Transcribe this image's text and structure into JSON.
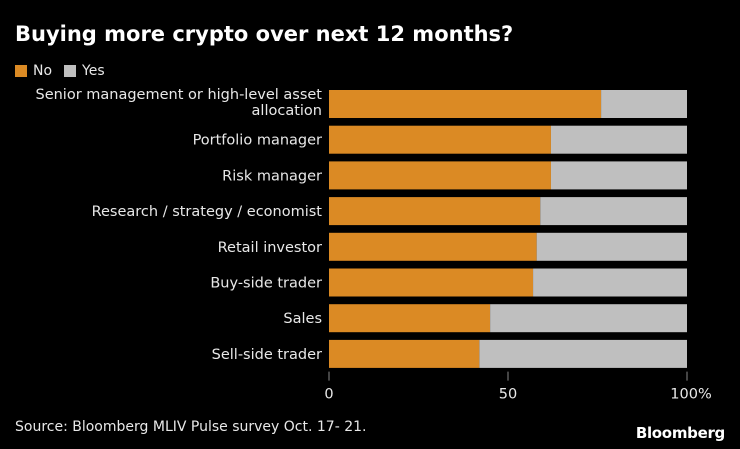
{
  "chart_data": {
    "type": "bar",
    "orientation": "horizontal",
    "stacked": true,
    "title": "Buying more crypto over next 12 months?",
    "categories": [
      "Senior management or high-level asset allocation",
      "Portfolio manager",
      "Risk manager",
      "Research / strategy / economist",
      "Retail investor",
      "Buy-side trader",
      "Sales",
      "Sell-side trader"
    ],
    "series": [
      {
        "name": "No",
        "color": "#db8a24",
        "values": [
          76,
          62,
          62,
          59,
          58,
          57,
          45,
          42
        ]
      },
      {
        "name": "Yes",
        "color": "#bfbfbf",
        "values": [
          24,
          38,
          38,
          41,
          42,
          43,
          55,
          58
        ]
      }
    ],
    "xlim": [
      0,
      100
    ],
    "xticks": [
      "0",
      "50",
      "100%"
    ],
    "legend_placement": "top-left",
    "grid": false
  },
  "source": "Source: Bloomberg MLIV Pulse survey Oct. 17- 21.",
  "logo": "Bloomberg"
}
